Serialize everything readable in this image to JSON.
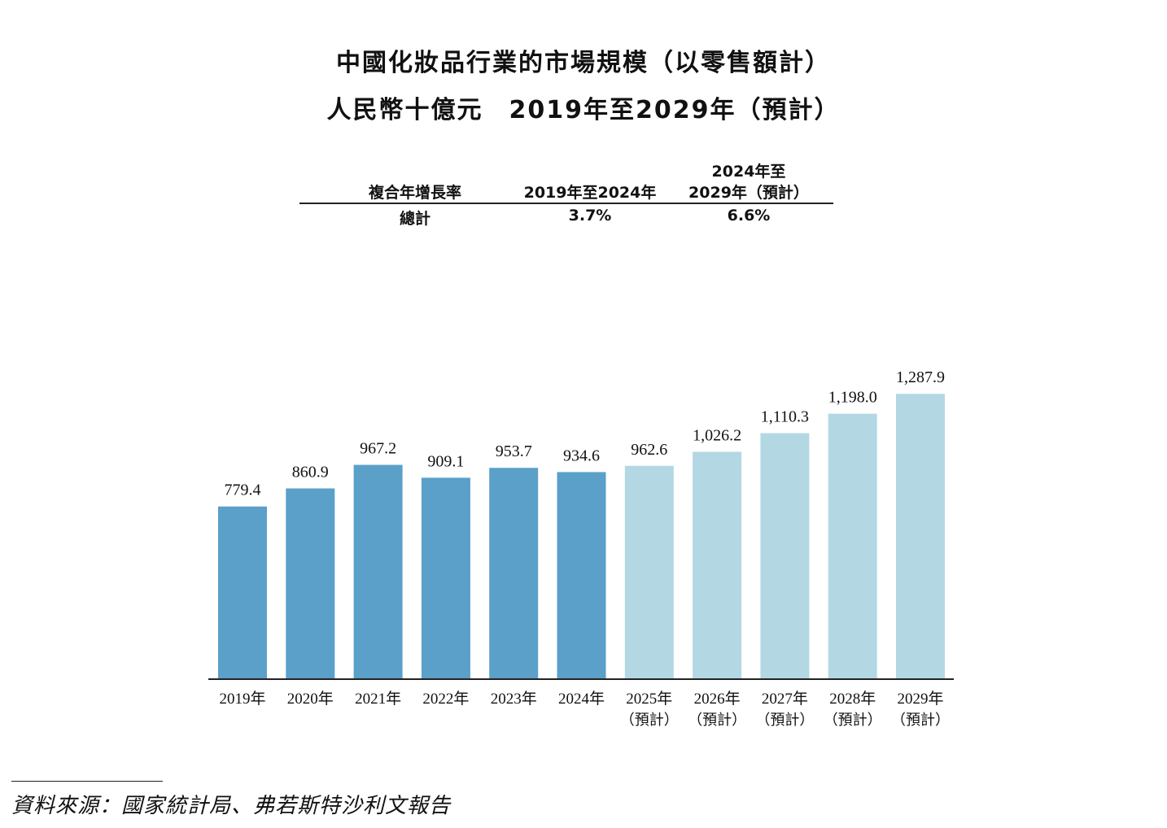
{
  "chart_data": {
    "type": "bar",
    "title": "中國化妝品行業的市場規模（以零售額計）",
    "subtitle": "人民幣十億元　2019年至2029年（預計）",
    "categories": [
      "2019年",
      "2020年",
      "2021年",
      "2022年",
      "2023年",
      "2024年",
      "2025年",
      "2026年",
      "2027年",
      "2028年",
      "2029年"
    ],
    "category_notes": [
      "",
      "",
      "",
      "",
      "",
      "",
      "（預計）",
      "（預計）",
      "（預計）",
      "（預計）",
      "（預計）"
    ],
    "values": [
      779.4,
      860.9,
      967.2,
      909.1,
      953.7,
      934.6,
      962.6,
      1026.2,
      1110.3,
      1198.0,
      1287.9
    ],
    "value_labels": [
      "779.4",
      "860.9",
      "967.2",
      "909.1",
      "953.7",
      "934.6",
      "962.6",
      "1,026.2",
      "1,110.3",
      "1,198.0",
      "1,287.9"
    ],
    "forecast": [
      false,
      false,
      false,
      false,
      false,
      false,
      true,
      true,
      true,
      true,
      true
    ],
    "colors": {
      "actual": "#5aa0c9",
      "forecast": "#b3d8e3",
      "axis": "#222222"
    },
    "ylim": [
      0,
      1400
    ],
    "grid": false,
    "xlabel": "",
    "ylabel": ""
  },
  "cagr_table": {
    "header": {
      "label": "複合年增長率",
      "col1": "2019年至2024年",
      "col2_line1": "2024年至",
      "col2_line2": "2029年（預計）"
    },
    "row": {
      "label": "總計",
      "col1": "3.7%",
      "col2": "6.6%"
    }
  },
  "source": "資料來源：國家統計局、弗若斯特沙利文報告"
}
